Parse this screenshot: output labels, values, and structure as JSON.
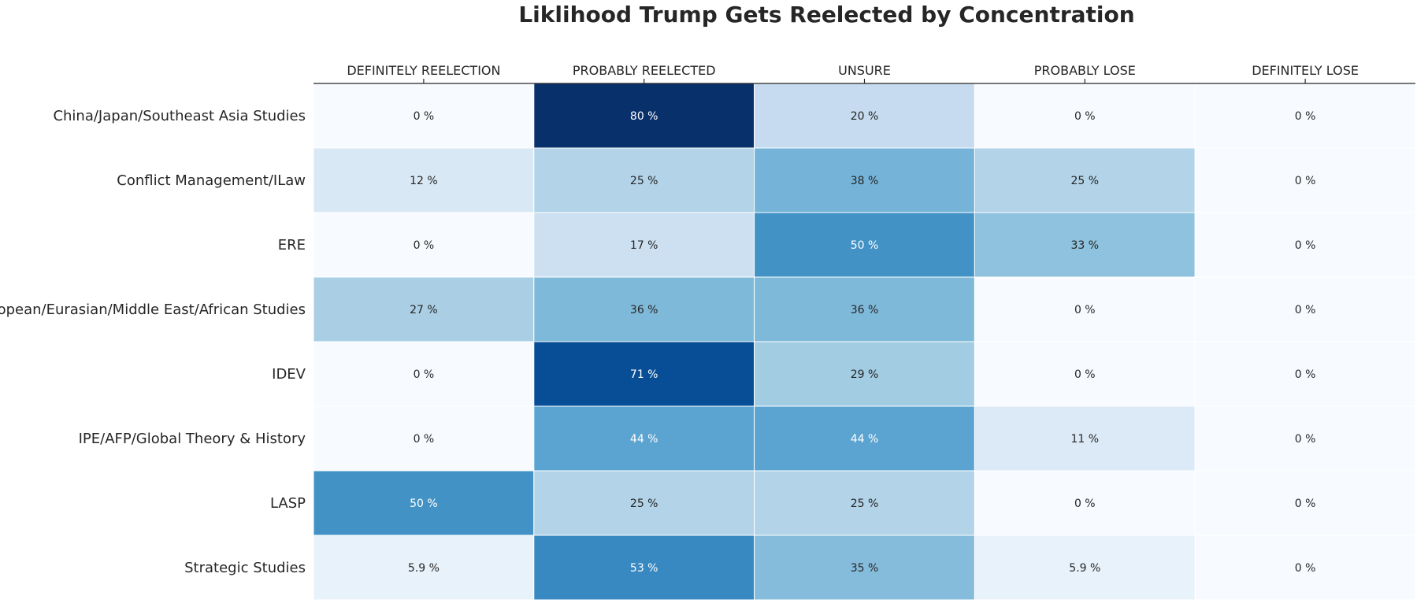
{
  "chart_data": {
    "type": "heatmap",
    "title": "Liklihood Trump Gets Reelected by Concentration",
    "columns": [
      "DEFINITELY REELECTION",
      "PROBABLY REELECTED",
      "UNSURE",
      "PROBABLY LOSE",
      "DEFINITELY LOSE"
    ],
    "rows": [
      "China/Japan/Southeast Asia Studies",
      "Conflict Management/ILaw",
      "ERE",
      "European/Eurasian/Middle East/African Studies",
      "IDEV",
      "IPE/AFP/Global Theory & History",
      "LASP",
      "Strategic Studies"
    ],
    "values": [
      [
        0,
        80,
        20,
        0,
        0
      ],
      [
        12,
        25,
        38,
        25,
        0
      ],
      [
        0,
        17,
        50,
        33,
        0
      ],
      [
        27,
        36,
        36,
        0,
        0
      ],
      [
        0,
        71,
        29,
        0,
        0
      ],
      [
        0,
        44,
        44,
        11,
        0
      ],
      [
        50,
        25,
        25,
        0,
        0
      ],
      [
        5.9,
        53,
        35,
        5.9,
        0
      ]
    ],
    "labels": [
      [
        "0 %",
        "80 %",
        "20 %",
        "0 %",
        "0 %"
      ],
      [
        "12 %",
        "25 %",
        "38 %",
        "25 %",
        "0 %"
      ],
      [
        "0 %",
        "17 %",
        "50 %",
        "33 %",
        "0 %"
      ],
      [
        "27 %",
        "36 %",
        "36 %",
        "0 %",
        "0 %"
      ],
      [
        "0 %",
        "71 %",
        "29 %",
        "0 %",
        "0 %"
      ],
      [
        "0 %",
        "44 %",
        "44 %",
        "11 %",
        "0 %"
      ],
      [
        "50 %",
        "25 %",
        "25 %",
        "0 %",
        "0 %"
      ],
      [
        "5.9 %",
        "53 %",
        "35 %",
        "5.9 %",
        "0 %"
      ]
    ],
    "value_range": [
      0,
      80
    ],
    "colormap": "Blues",
    "colorbar": false,
    "grid": false
  }
}
